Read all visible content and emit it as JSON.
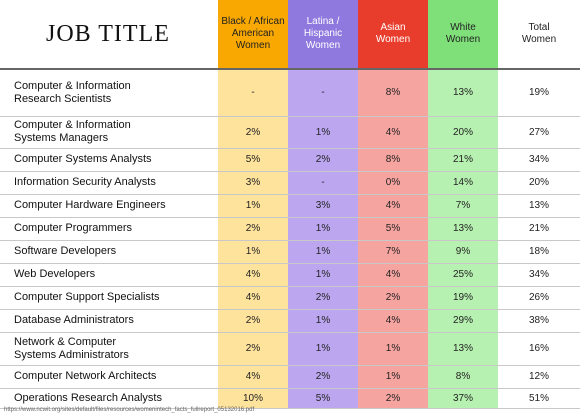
{
  "table": {
    "title": "JOB TITLE",
    "columns": [
      "Black / African\nAmerican\nWomen",
      "Latina /\nHispanic\nWomen",
      "Asian\nWomen",
      "White\nWomen",
      "Total\nWomen"
    ],
    "rows": [
      [
        "Computer & Information\nResearch Scientists",
        "-",
        "-",
        "8%",
        "13%",
        "19%"
      ],
      [
        "Computer & Information\nSystems Managers",
        "2%",
        "1%",
        "4%",
        "20%",
        "27%"
      ],
      [
        "Computer Systems Analysts",
        "5%",
        "2%",
        "8%",
        "21%",
        "34%"
      ],
      [
        "Information Security Analysts",
        "3%",
        "-",
        "0%",
        "14%",
        "20%"
      ],
      [
        "Computer Hardware Engineers",
        "1%",
        "3%",
        "4%",
        "7%",
        "13%"
      ],
      [
        "Computer Programmers",
        "2%",
        "1%",
        "5%",
        "13%",
        "21%"
      ],
      [
        "Software Developers",
        "1%",
        "1%",
        "7%",
        "9%",
        "18%"
      ],
      [
        "Web Developers",
        "4%",
        "1%",
        "4%",
        "25%",
        "34%"
      ],
      [
        "Computer Support Specialists",
        "4%",
        "2%",
        "2%",
        "19%",
        "26%"
      ],
      [
        "Database Administrators",
        "2%",
        "1%",
        "4%",
        "29%",
        "38%"
      ],
      [
        "Network & Computer\nSystems Administrators",
        "2%",
        "1%",
        "1%",
        "13%",
        "16%"
      ],
      [
        "Computer Network Architects",
        "4%",
        "2%",
        "1%",
        "8%",
        "12%"
      ],
      [
        "Operations Research Analysts",
        "10%",
        "5%",
        "2%",
        "37%",
        "51%"
      ]
    ],
    "source": "https://www.ncwit.org/sites/default/files/resources/womenintech_facts_fullreport_05132016.pdf"
  }
}
